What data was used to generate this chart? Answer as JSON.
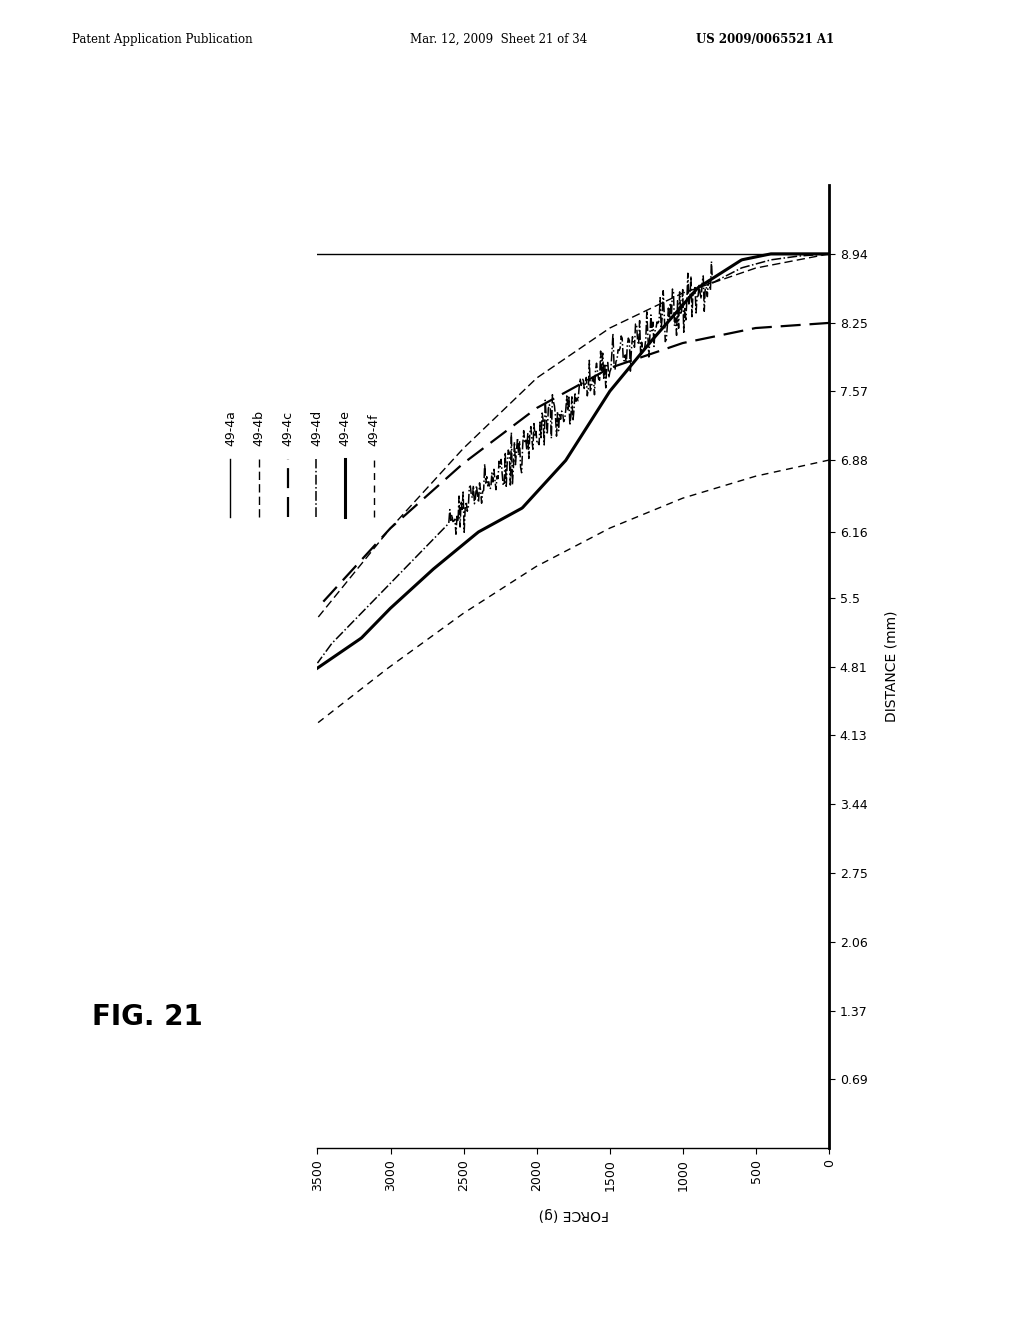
{
  "header_left": "Patent Application Publication",
  "header_mid": "Mar. 12, 2009  Sheet 21 of 34",
  "header_right": "US 2009/0065521 A1",
  "fig_label": "FIG. 21",
  "xlabel": "FORCE (g)",
  "ylabel": "DISTANCE (mm)",
  "x_ticks": [
    0,
    500,
    1000,
    1500,
    2000,
    2500,
    3000,
    3500
  ],
  "y_ticks": [
    0.69,
    1.37,
    2.06,
    2.75,
    3.44,
    4.13,
    4.81,
    5.5,
    6.16,
    6.88,
    7.57,
    8.25,
    8.94
  ],
  "xlim_left": 3500,
  "xlim_right": 0,
  "ylim_bottom": 0.0,
  "ylim_top": 9.63,
  "background_color": "#ffffff",
  "line_color": "#000000",
  "legend_labels": [
    "49-4a",
    "49-4b",
    "49-4c",
    "49-4d",
    "49-4e",
    "49-4f"
  ],
  "lines": [
    {
      "label": "49-4a",
      "ls": "-",
      "lw": 1.0,
      "f": [
        0,
        3500
      ],
      "d": [
        8.94,
        8.94
      ]
    },
    {
      "label": "49-4b",
      "ls": "--",
      "lw": 1.0,
      "dashes": [
        6,
        3
      ],
      "f": [
        0,
        500,
        1000,
        1500,
        2000,
        2500,
        3000,
        3500
      ],
      "d": [
        8.94,
        8.8,
        8.55,
        8.2,
        7.7,
        7.0,
        6.2,
        5.3
      ]
    },
    {
      "label": "49-4c",
      "ls": "--",
      "lw": 1.6,
      "dashes": [
        9,
        4
      ],
      "f": [
        0,
        500,
        1000,
        1500,
        2000,
        2500,
        3000,
        3500
      ],
      "d": [
        8.25,
        8.2,
        8.05,
        7.8,
        7.4,
        6.85,
        6.2,
        5.4
      ]
    },
    {
      "label": "49-4d",
      "ls": "-.",
      "lw": 1.1,
      "f": [
        0,
        200,
        400,
        600,
        800,
        1000,
        1200,
        1400,
        1600,
        1800,
        2000,
        2200,
        2400,
        2600,
        2800,
        3000,
        3200,
        3400,
        3500
      ],
      "d": [
        8.94,
        8.92,
        8.88,
        8.8,
        8.65,
        8.45,
        8.2,
        7.95,
        7.7,
        7.45,
        7.15,
        6.85,
        6.55,
        6.25,
        5.95,
        5.65,
        5.35,
        5.05,
        4.85
      ],
      "jagged": true,
      "jagged_start": 800,
      "jagged_end": 2600,
      "jagged_scale": 0.13
    },
    {
      "label": "49-4e",
      "ls": "-",
      "lw": 2.2,
      "f": [
        0,
        200,
        400,
        600,
        900,
        1200,
        1500,
        1800,
        2100,
        2400,
        2700,
        3000,
        3200,
        3500
      ],
      "d": [
        8.94,
        8.94,
        8.94,
        8.88,
        8.6,
        8.1,
        7.57,
        6.88,
        6.4,
        6.16,
        5.8,
        5.4,
        5.1,
        4.8
      ]
    },
    {
      "label": "49-4f",
      "ls": "--",
      "lw": 1.0,
      "dashes": [
        5,
        4
      ],
      "f": [
        0,
        500,
        1000,
        1500,
        2000,
        2500,
        3000,
        3500
      ],
      "d": [
        6.88,
        6.72,
        6.5,
        6.2,
        5.82,
        5.35,
        4.82,
        4.25
      ]
    }
  ],
  "legend_entries": [
    {
      "label": "49-4a",
      "ls": "-",
      "lw": 1.0,
      "dashes": null
    },
    {
      "label": "49-4b",
      "ls": "--",
      "lw": 1.0,
      "dashes": [
        6,
        3
      ]
    },
    {
      "label": "49-4c",
      "ls": "--",
      "lw": 1.6,
      "dashes": [
        9,
        4
      ]
    },
    {
      "label": "49-4d",
      "ls": "-.",
      "lw": 1.1,
      "dashes": null
    },
    {
      "label": "49-4e",
      "ls": "-",
      "lw": 2.2,
      "dashes": null
    },
    {
      "label": "49-4f",
      "ls": "--",
      "lw": 1.0,
      "dashes": [
        5,
        4
      ]
    }
  ]
}
